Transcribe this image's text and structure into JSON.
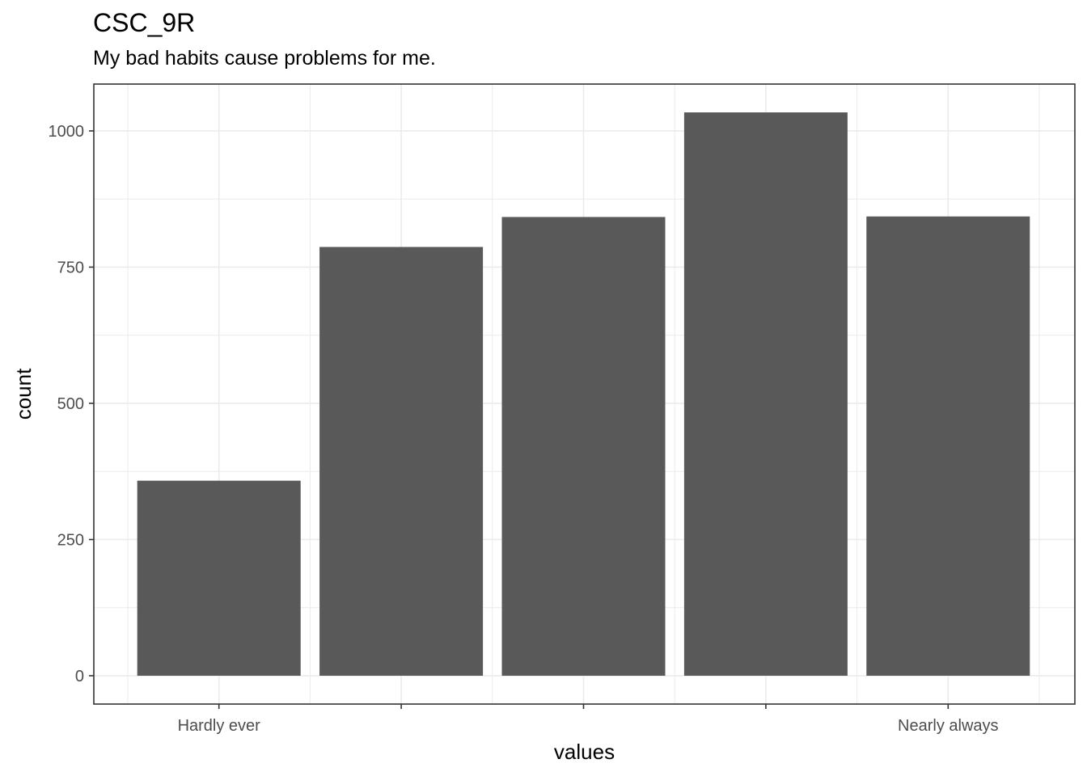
{
  "chart_data": {
    "type": "bar",
    "title": "CSC_9R",
    "subtitle": "My bad habits cause problems for me.",
    "xlabel": "values",
    "ylabel": "count",
    "categories": [
      "Hardly ever",
      "",
      "",
      "",
      "Nearly always"
    ],
    "values": [
      358,
      787,
      842,
      1034,
      843
    ],
    "ylim": [
      -52,
      1086
    ],
    "yticks": [
      0,
      250,
      500,
      750,
      1000
    ],
    "grid": true,
    "bar_color": "#595959",
    "grid_color": "#ebebeb",
    "panel_border_color": "#333333"
  }
}
